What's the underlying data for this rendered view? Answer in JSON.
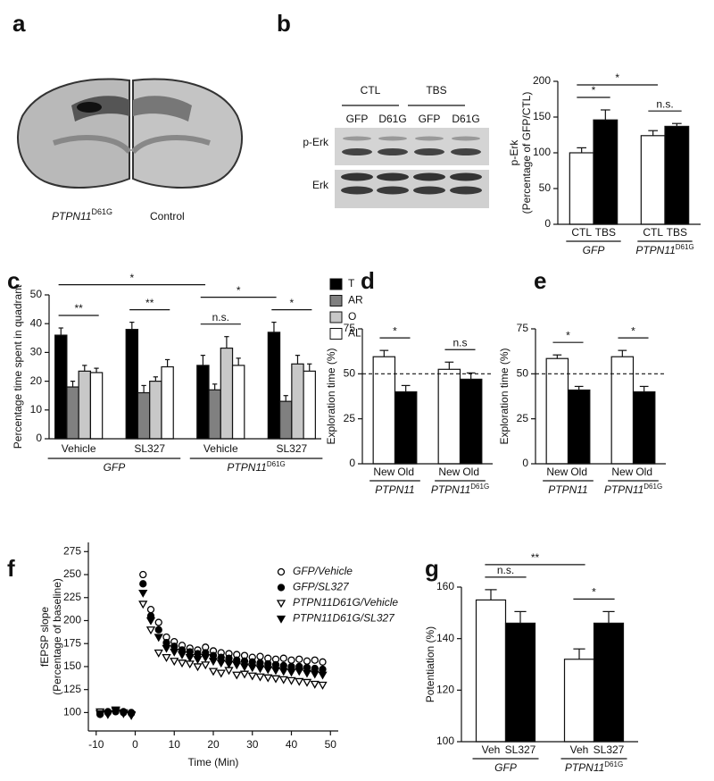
{
  "panels": [
    "a",
    "b",
    "c",
    "d",
    "e",
    "f",
    "g"
  ],
  "panel_a": {
    "labels": [
      {
        "text": "PTPN11",
        "sup": "D61G"
      },
      {
        "text": "Control"
      }
    ]
  },
  "blot": {
    "conditions": [
      "CTL",
      "TBS"
    ],
    "lanes": [
      "GFP",
      "D61G",
      "GFP",
      "D61G"
    ],
    "rows": [
      "p-Erk",
      "Erk"
    ]
  },
  "chart_data": [
    {
      "type": "bar",
      "ylabel": [
        "p-Erk",
        "(Percentage of GFP/CTL)"
      ],
      "categories": [
        "CTL",
        "TBS",
        "CTL",
        "TBS"
      ],
      "values": [
        100,
        146,
        124,
        137
      ],
      "errors": [
        7,
        14,
        7,
        4
      ],
      "colors": [
        "#ffffff",
        "#000000",
        "#ffffff",
        "#000000"
      ],
      "ylim": [
        0,
        200
      ],
      "yticks": [
        0,
        50,
        100,
        150,
        200
      ],
      "groups": [
        {
          "label": "GFP",
          "bars": [
            0,
            1
          ]
        },
        {
          "label": "PTPN11",
          "sup": "D61G",
          "bars": [
            2,
            3
          ]
        }
      ],
      "annotations": [
        {
          "text": "*",
          "bars": [
            0,
            1
          ]
        },
        {
          "text": "n.s.",
          "bars": [
            2,
            3
          ]
        },
        {
          "text": "*",
          "bars": [
            0,
            2
          ]
        }
      ]
    },
    {
      "type": "grouped_bar",
      "ylabel": [
        "Percentage time spent in quadrant"
      ],
      "categories": [
        "Vehicle",
        "SL327",
        "Vehicle",
        "SL327"
      ],
      "series": [
        {
          "name": "T",
          "color": "#000000",
          "values": [
            36,
            38,
            25.5,
            37
          ],
          "errors": [
            2.5,
            2.5,
            3.5,
            3.5
          ]
        },
        {
          "name": "AR",
          "color": "#808080",
          "values": [
            18,
            16,
            17,
            13
          ],
          "errors": [
            2,
            2.5,
            2,
            2
          ]
        },
        {
          "name": "O",
          "color": "#c8c8c8",
          "values": [
            23.5,
            20,
            31.5,
            26
          ],
          "errors": [
            2,
            1.5,
            4,
            3
          ]
        },
        {
          "name": "AL",
          "color": "#ffffff",
          "values": [
            23,
            25,
            25.5,
            23.5
          ],
          "errors": [
            1.5,
            2.5,
            2.5,
            2.5
          ]
        }
      ],
      "ylim": [
        0,
        50
      ],
      "yticks": [
        0,
        10,
        20,
        30,
        40,
        50
      ],
      "groups": [
        {
          "label": "GFP",
          "categories": [
            0,
            1
          ]
        },
        {
          "label": "PTPN11",
          "sup": "D61G",
          "categories": [
            2,
            3
          ]
        }
      ],
      "annotations": [
        {
          "text": "**",
          "bars": [
            0,
            3
          ]
        },
        {
          "text": "**",
          "bars": [
            4,
            7
          ]
        },
        {
          "text": "n.s.",
          "bars": [
            8,
            11
          ]
        },
        {
          "text": "*",
          "bars": [
            12,
            15
          ]
        },
        {
          "text": "*",
          "bars": [
            0,
            8
          ]
        },
        {
          "text": "*",
          "bars": [
            8,
            12
          ]
        }
      ]
    },
    {
      "type": "bar",
      "ylabel": [
        "Exploration time (%)"
      ],
      "categories": [
        "New",
        "Old",
        "New",
        "Old"
      ],
      "values": [
        59.5,
        40,
        52.5,
        47
      ],
      "errors": [
        3.5,
        3.5,
        4,
        3.5
      ],
      "colors": [
        "#ffffff",
        "#000000",
        "#ffffff",
        "#000000"
      ],
      "ylim": [
        0,
        75
      ],
      "yticks": [
        0,
        25,
        50,
        75
      ],
      "reference_line": 50,
      "groups": [
        {
          "label": "PTPN11",
          "bars": [
            0,
            1
          ]
        },
        {
          "label": "PTPN11",
          "sup": "D61G",
          "bars": [
            2,
            3
          ]
        }
      ],
      "annotations": [
        {
          "text": "*",
          "bars": [
            0,
            1
          ]
        },
        {
          "text": "n.s",
          "bars": [
            2,
            3
          ]
        }
      ]
    },
    {
      "type": "bar",
      "ylabel": [
        "Exploration time (%)"
      ],
      "categories": [
        "New",
        "Old",
        "New",
        "Old"
      ],
      "values": [
        58.5,
        41,
        59.5,
        40
      ],
      "errors": [
        2,
        2,
        3.5,
        3
      ],
      "colors": [
        "#ffffff",
        "#000000",
        "#ffffff",
        "#000000"
      ],
      "ylim": [
        0,
        75
      ],
      "yticks": [
        0,
        25,
        50,
        75
      ],
      "reference_line": 50,
      "groups": [
        {
          "label": "PTPN11",
          "bars": [
            0,
            1
          ]
        },
        {
          "label": "PTPN11",
          "sup": "D61G",
          "bars": [
            2,
            3
          ]
        }
      ],
      "annotations": [
        {
          "text": "*",
          "bars": [
            0,
            1
          ]
        },
        {
          "text": "*",
          "bars": [
            2,
            3
          ]
        }
      ]
    },
    {
      "type": "scatter",
      "xlabel": "Time (Min)",
      "ylabel": [
        "fEPSP slope",
        "(Percentage of baseline)"
      ],
      "x": [
        -9,
        -7,
        -5,
        -3,
        -1,
        2,
        4,
        6,
        8,
        10,
        12,
        14,
        16,
        18,
        20,
        22,
        24,
        26,
        28,
        30,
        32,
        34,
        36,
        38,
        40,
        42,
        44,
        46,
        48
      ],
      "series": [
        {
          "name": "GFP/Vehicle",
          "color": "#000000",
          "marker": "circle",
          "filled": false,
          "values": [
            100,
            101,
            102,
            101,
            100,
            250,
            212,
            198,
            182,
            177,
            173,
            170,
            168,
            171,
            167,
            165,
            164,
            163,
            162,
            160,
            161,
            159,
            158,
            159,
            157,
            158,
            156,
            157,
            155
          ]
        },
        {
          "name": "GFP/SL327",
          "color": "#000000",
          "marker": "circle",
          "filled": true,
          "values": [
            98,
            100,
            101,
            100,
            99,
            240,
            205,
            190,
            176,
            172,
            168,
            166,
            164,
            165,
            162,
            160,
            159,
            157,
            156,
            155,
            154,
            153,
            152,
            151,
            150,
            150,
            149,
            148,
            147
          ]
        },
        {
          "name": "PTPN11D61G/Vehicle",
          "color": "#000000",
          "marker": "triangle-down",
          "filled": false,
          "values": [
            101,
            99,
            103,
            100,
            98,
            218,
            190,
            165,
            160,
            156,
            154,
            153,
            150,
            152,
            145,
            143,
            146,
            141,
            142,
            140,
            139,
            138,
            137,
            136,
            135,
            134,
            133,
            131,
            130
          ]
        },
        {
          "name": "PTPN11D61G/SL327",
          "color": "#000000",
          "marker": "triangle-down",
          "filled": true,
          "values": [
            99,
            98,
            102,
            99,
            97,
            230,
            200,
            182,
            170,
            166,
            163,
            160,
            158,
            160,
            156,
            154,
            153,
            152,
            150,
            149,
            148,
            147,
            146,
            145,
            144,
            145,
            143,
            142,
            141
          ]
        }
      ],
      "xlim": [
        -12,
        52
      ],
      "xticks": [
        -10,
        0,
        10,
        20,
        30,
        40,
        50
      ],
      "ylim": [
        80,
        285
      ],
      "yticks": [
        100,
        125,
        150,
        175,
        200,
        225,
        250,
        275
      ]
    },
    {
      "type": "bar",
      "ylabel": [
        "Potentiation (%)"
      ],
      "categories": [
        "Veh",
        "SL327",
        "Veh",
        "SL327"
      ],
      "values": [
        155,
        146,
        132,
        146
      ],
      "errors": [
        4,
        4.5,
        4,
        4.5
      ],
      "colors": [
        "#ffffff",
        "#000000",
        "#ffffff",
        "#000000"
      ],
      "ylim": [
        100,
        160
      ],
      "yticks": [
        100,
        120,
        140,
        160
      ],
      "groups": [
        {
          "label": "GFP",
          "bars": [
            0,
            1
          ]
        },
        {
          "label": "PTPN11",
          "sup": "D61G",
          "bars": [
            2,
            3
          ]
        }
      ],
      "annotations": [
        {
          "text": "n.s.",
          "bars": [
            0,
            1
          ]
        },
        {
          "text": "*",
          "bars": [
            2,
            3
          ]
        },
        {
          "text": "**",
          "bars": [
            0,
            2
          ]
        }
      ]
    }
  ]
}
